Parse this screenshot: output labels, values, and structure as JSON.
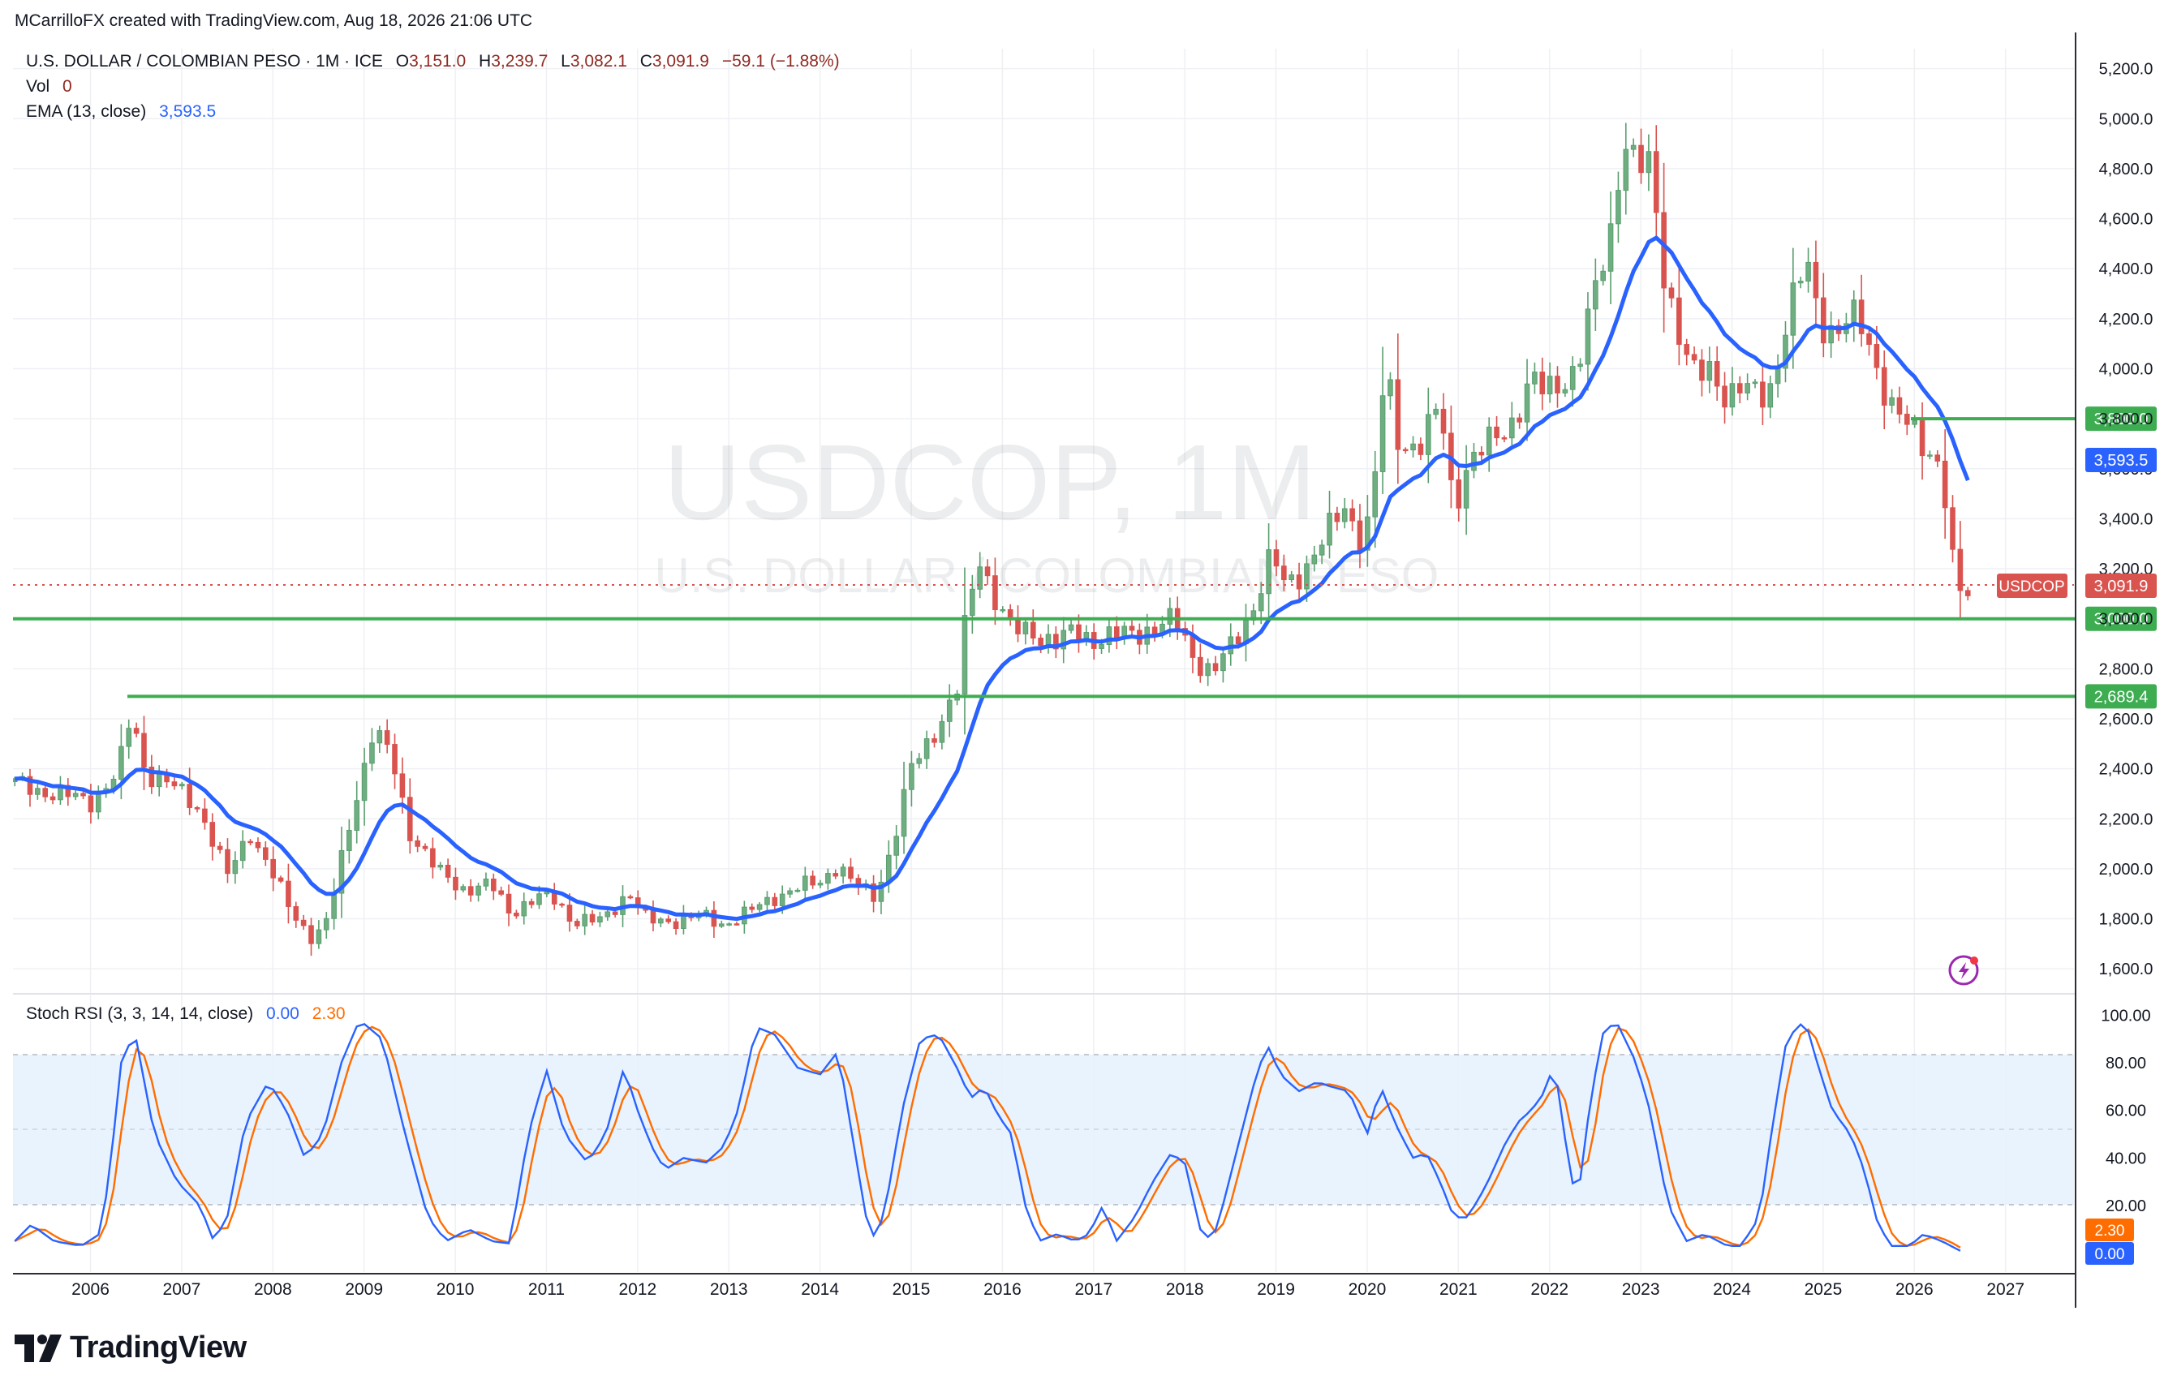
{
  "header": {
    "author_line": "MCarrilloFX created with TradingView.com, Aug 18, 2026 21:06 UTC",
    "symbol_desc": "U.S. DOLLAR / COLOMBIAN PESO · 1M · ICE",
    "ohlc": {
      "o_label": "O",
      "o": "3,151.0",
      "h_label": "H",
      "h": "3,239.7",
      "l_label": "L",
      "l": "3,082.1",
      "c_label": "C",
      "c": "3,091.9",
      "change": "−59.1 (−1.88%)"
    },
    "vol_label": "Vol",
    "vol_value": "0",
    "ema_label": "EMA (13, close)",
    "ema_value": "3,593.5",
    "stoch_label": "Stoch RSI (3, 3, 14, 14, close)",
    "stoch_k": "0.00",
    "stoch_d": "2.30"
  },
  "watermark": {
    "symbol": "USDCOP, 1M",
    "name": "U.S. DOLLAR / COLOMBIAN PESO"
  },
  "brand": {
    "name": "TradingView"
  },
  "colors": {
    "up": "#22ab94",
    "up_body": "#5a9e6f",
    "down": "#d9534f",
    "ema": "#2962ff",
    "level": "#3ead52",
    "k_line": "#2962ff",
    "d_line": "#ff6d00",
    "price_tag": "#d9534f"
  },
  "chart_data": [
    {
      "type": "candlestick",
      "title": "U.S. DOLLAR / COLOMBIAN PESO · 1M · ICE",
      "ylabel": "",
      "xlabel": "",
      "ylim": [
        1500,
        5280
      ],
      "y_ticks": [
        "5,200.0",
        "5,000.0",
        "4,800.0",
        "4,600.0",
        "4,400.0",
        "4,200.0",
        "4,000.0",
        "3,800.0",
        "3,600.0",
        "3,400.0",
        "3,200.0",
        "3,000.0",
        "2,800.0",
        "2,600.0",
        "2,400.0",
        "2,200.0",
        "2,000.0",
        "1,800.0",
        "1,600.0"
      ],
      "x_ticks": [
        "2006",
        "2007",
        "2008",
        "2009",
        "2010",
        "2011",
        "2012",
        "2013",
        "2014",
        "2015",
        "2016",
        "2017",
        "2018",
        "2019",
        "2020",
        "2021",
        "2022",
        "2023",
        "2024",
        "2025",
        "2026",
        "2027"
      ],
      "xlim": [
        2005.15,
        2027.75
      ],
      "anchors": [
        [
          2005.17,
          2340
        ],
        [
          2005.5,
          2310
        ],
        [
          2006.0,
          2270
        ],
        [
          2006.3,
          2380
        ],
        [
          2006.45,
          2620
        ],
        [
          2006.6,
          2390
        ],
        [
          2006.9,
          2330
        ],
        [
          2007.2,
          2240
        ],
        [
          2007.5,
          1970
        ],
        [
          2007.75,
          2150
        ],
        [
          2007.95,
          2010
        ],
        [
          2008.2,
          1830
        ],
        [
          2008.45,
          1720
        ],
        [
          2008.6,
          1790
        ],
        [
          2008.85,
          2200
        ],
        [
          2009.1,
          2550
        ],
        [
          2009.3,
          2450
        ],
        [
          2009.5,
          2150
        ],
        [
          2009.8,
          1990
        ],
        [
          2010.1,
          1920
        ],
        [
          2010.4,
          1930
        ],
        [
          2010.6,
          1830
        ],
        [
          2010.9,
          1880
        ],
        [
          2011.1,
          1880
        ],
        [
          2011.3,
          1790
        ],
        [
          2011.6,
          1790
        ],
        [
          2011.9,
          1910
        ],
        [
          2012.1,
          1790
        ],
        [
          2012.4,
          1795
        ],
        [
          2012.7,
          1810
        ],
        [
          2012.95,
          1780
        ],
        [
          2013.2,
          1820
        ],
        [
          2013.5,
          1890
        ],
        [
          2013.75,
          1920
        ],
        [
          2014.0,
          1950
        ],
        [
          2014.2,
          2020
        ],
        [
          2014.35,
          1940
        ],
        [
          2014.6,
          1890
        ],
        [
          2014.8,
          2100
        ],
        [
          2015.0,
          2400
        ],
        [
          2015.25,
          2550
        ],
        [
          2015.5,
          2700
        ],
        [
          2015.6,
          3000
        ],
        [
          2015.75,
          3250
        ],
        [
          2015.9,
          3100
        ],
        [
          2016.1,
          2950
        ],
        [
          2016.35,
          2950
        ],
        [
          2016.6,
          2900
        ],
        [
          2016.8,
          2950
        ],
        [
          2017.0,
          2920
        ],
        [
          2017.3,
          2930
        ],
        [
          2017.6,
          2960
        ],
        [
          2017.9,
          2990
        ],
        [
          2018.1,
          2850
        ],
        [
          2018.3,
          2780
        ],
        [
          2018.5,
          2880
        ],
        [
          2018.75,
          3050
        ],
        [
          2018.95,
          3250
        ],
        [
          2019.1,
          3130
        ],
        [
          2019.3,
          3200
        ],
        [
          2019.5,
          3300
        ],
        [
          2019.75,
          3450
        ],
        [
          2019.95,
          3320
        ],
        [
          2020.05,
          3430
        ],
        [
          2020.2,
          4000
        ],
        [
          2020.35,
          3700
        ],
        [
          2020.6,
          3700
        ],
        [
          2020.8,
          3850
        ],
        [
          2020.95,
          3450
        ],
        [
          2021.1,
          3620
        ],
        [
          2021.35,
          3700
        ],
        [
          2021.6,
          3800
        ],
        [
          2021.8,
          3950
        ],
        [
          2021.95,
          3900
        ],
        [
          2022.1,
          3950
        ],
        [
          2022.3,
          4000
        ],
        [
          2022.5,
          4300
        ],
        [
          2022.7,
          4600
        ],
        [
          2022.8,
          4950
        ],
        [
          2022.95,
          4800
        ],
        [
          2023.1,
          4800
        ],
        [
          2023.25,
          4400
        ],
        [
          2023.45,
          4100
        ],
        [
          2023.6,
          3950
        ],
        [
          2023.75,
          4000
        ],
        [
          2023.95,
          3900
        ],
        [
          2024.1,
          3920
        ],
        [
          2024.3,
          3880
        ],
        [
          2024.45,
          3950
        ],
        [
          2024.6,
          4200
        ],
        [
          2024.75,
          4350
        ],
        [
          2024.85,
          4400
        ],
        [
          2024.95,
          4200
        ],
        [
          2025.15,
          4150
        ],
        [
          2025.3,
          4200
        ],
        [
          2025.45,
          4150
        ],
        [
          2025.6,
          4000
        ],
        [
          2025.75,
          3850
        ],
        [
          2025.95,
          3750
        ],
        [
          2026.1,
          3700
        ],
        [
          2026.3,
          3620
        ],
        [
          2026.4,
          3250
        ],
        [
          2026.5,
          3100
        ],
        [
          2026.6,
          3092
        ]
      ],
      "levels": [
        {
          "value": 3800.0,
          "label": "3,800.0"
        },
        {
          "value": 3000.0,
          "label": "3,000.0"
        },
        {
          "value": 2689.4,
          "label": "2,689.4"
        }
      ],
      "ema_label_value": "3,593.5",
      "last_price": {
        "value": 3091.9,
        "label": "3,091.9",
        "symbol": "USDCOP"
      }
    },
    {
      "type": "line",
      "title": "Stoch RSI (3, 3, 14, 14, close)",
      "ylim": [
        -8,
        108
      ],
      "y_ticks": [
        "100.00",
        "80.00",
        "60.00",
        "40.00",
        "20.00"
      ],
      "bands": [
        20,
        80
      ],
      "anchors": [
        [
          2005.17,
          5
        ],
        [
          2005.35,
          12
        ],
        [
          2005.6,
          5
        ],
        [
          2005.9,
          3
        ],
        [
          2006.1,
          8
        ],
        [
          2006.2,
          30
        ],
        [
          2006.35,
          85
        ],
        [
          2006.5,
          90
        ],
        [
          2006.7,
          50
        ],
        [
          2006.95,
          30
        ],
        [
          2007.2,
          20
        ],
        [
          2007.35,
          5
        ],
        [
          2007.5,
          15
        ],
        [
          2007.7,
          55
        ],
        [
          2007.95,
          72
        ],
        [
          2008.15,
          60
        ],
        [
          2008.35,
          40
        ],
        [
          2008.55,
          50
        ],
        [
          2008.75,
          80
        ],
        [
          2008.95,
          98
        ],
        [
          2009.2,
          90
        ],
        [
          2009.45,
          50
        ],
        [
          2009.7,
          15
        ],
        [
          2009.9,
          5
        ],
        [
          2010.15,
          10
        ],
        [
          2010.4,
          5
        ],
        [
          2010.6,
          4
        ],
        [
          2010.8,
          50
        ],
        [
          2011.0,
          77
        ],
        [
          2011.2,
          50
        ],
        [
          2011.45,
          38
        ],
        [
          2011.65,
          50
        ],
        [
          2011.85,
          78
        ],
        [
          2012.0,
          60
        ],
        [
          2012.15,
          45
        ],
        [
          2012.3,
          35
        ],
        [
          2012.5,
          40
        ],
        [
          2012.75,
          38
        ],
        [
          2012.95,
          45
        ],
        [
          2013.1,
          60
        ],
        [
          2013.3,
          95
        ],
        [
          2013.5,
          92
        ],
        [
          2013.75,
          78
        ],
        [
          2014.0,
          75
        ],
        [
          2014.2,
          85
        ],
        [
          2014.35,
          50
        ],
        [
          2014.55,
          5
        ],
        [
          2014.7,
          15
        ],
        [
          2014.9,
          60
        ],
        [
          2015.1,
          90
        ],
        [
          2015.3,
          92
        ],
        [
          2015.5,
          78
        ],
        [
          2015.65,
          65
        ],
        [
          2015.8,
          70
        ],
        [
          2015.95,
          58
        ],
        [
          2016.1,
          50
        ],
        [
          2016.25,
          20
        ],
        [
          2016.4,
          5
        ],
        [
          2016.6,
          8
        ],
        [
          2016.8,
          5
        ],
        [
          2016.95,
          8
        ],
        [
          2017.1,
          20
        ],
        [
          2017.25,
          5
        ],
        [
          2017.45,
          15
        ],
        [
          2017.65,
          30
        ],
        [
          2017.85,
          42
        ],
        [
          2018.0,
          38
        ],
        [
          2018.2,
          5
        ],
        [
          2018.35,
          10
        ],
        [
          2018.55,
          40
        ],
        [
          2018.75,
          70
        ],
        [
          2018.9,
          88
        ],
        [
          2019.05,
          75
        ],
        [
          2019.25,
          68
        ],
        [
          2019.45,
          72
        ],
        [
          2019.6,
          70
        ],
        [
          2019.8,
          68
        ],
        [
          2020.0,
          50
        ],
        [
          2020.15,
          70
        ],
        [
          2020.3,
          55
        ],
        [
          2020.5,
          40
        ],
        [
          2020.65,
          42
        ],
        [
          2020.8,
          30
        ],
        [
          2020.95,
          15
        ],
        [
          2021.1,
          15
        ],
        [
          2021.3,
          28
        ],
        [
          2021.5,
          45
        ],
        [
          2021.65,
          55
        ],
        [
          2021.8,
          60
        ],
        [
          2021.95,
          68
        ],
        [
          2022.05,
          80
        ],
        [
          2022.2,
          40
        ],
        [
          2022.3,
          20
        ],
        [
          2022.45,
          65
        ],
        [
          2022.6,
          95
        ],
        [
          2022.75,
          96
        ],
        [
          2022.95,
          80
        ],
        [
          2023.1,
          60
        ],
        [
          2023.3,
          20
        ],
        [
          2023.5,
          5
        ],
        [
          2023.7,
          8
        ],
        [
          2023.85,
          5
        ],
        [
          2023.95,
          3
        ],
        [
          2024.1,
          3
        ],
        [
          2024.3,
          15
        ],
        [
          2024.45,
          55
        ],
        [
          2024.6,
          90
        ],
        [
          2024.8,
          98
        ],
        [
          2024.95,
          78
        ],
        [
          2025.1,
          60
        ],
        [
          2025.3,
          50
        ],
        [
          2025.45,
          35
        ],
        [
          2025.6,
          12
        ],
        [
          2025.75,
          3
        ],
        [
          2025.95,
          3
        ],
        [
          2026.1,
          8
        ],
        [
          2026.3,
          5
        ],
        [
          2026.55,
          0.0
        ]
      ]
    }
  ]
}
